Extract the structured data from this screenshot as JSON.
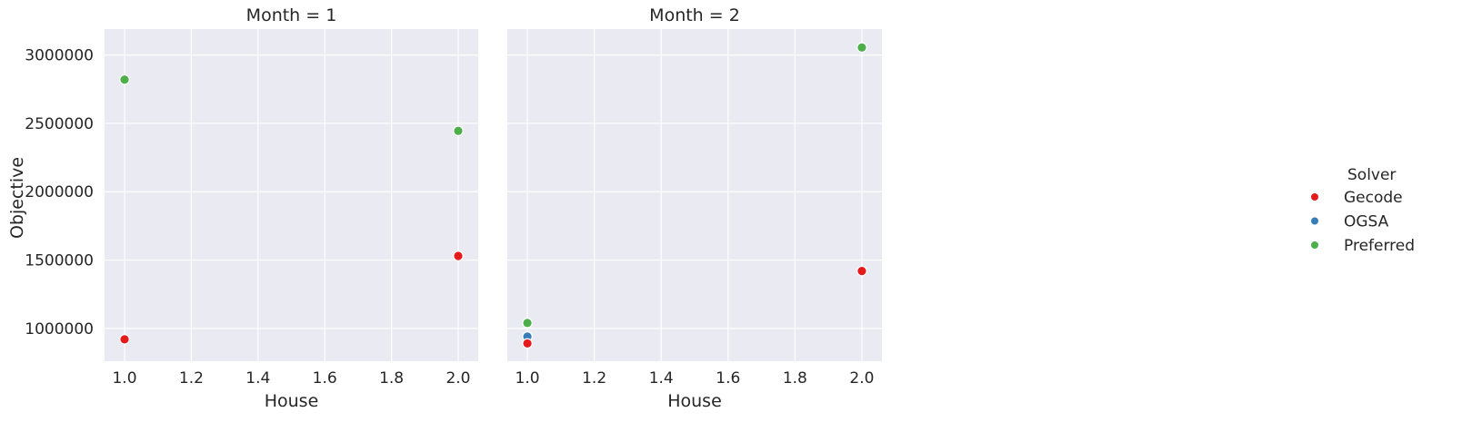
{
  "chart_data": {
    "type": "scatter",
    "xlabel": "House",
    "ylabel": "Objective",
    "xlim": [
      0.94,
      2.06
    ],
    "ylim": [
      760000,
      3190000
    ],
    "xticks": [
      1.0,
      1.2,
      1.4,
      1.6,
      1.8,
      2.0
    ],
    "xtick_labels": [
      "1.0",
      "1.2",
      "1.4",
      "1.6",
      "1.8",
      "2.0"
    ],
    "yticks": [
      1000000,
      1500000,
      2000000,
      2500000,
      3000000
    ],
    "ytick_labels": [
      "1000000",
      "1500000",
      "2000000",
      "2500000",
      "3000000"
    ],
    "grid": true,
    "legend": {
      "title": "Solver",
      "placement": "right",
      "entries": [
        {
          "name": "Gecode",
          "color": "#e41a1c"
        },
        {
          "name": "OGSA",
          "color": "#377eb8"
        },
        {
          "name": "Preferred",
          "color": "#4daf4a"
        }
      ]
    },
    "facets": [
      {
        "title": "Month = 1",
        "series": [
          {
            "name": "Gecode",
            "color": "#e41a1c",
            "points": [
              {
                "x": 1.0,
                "y": 920000
              },
              {
                "x": 2.0,
                "y": 1530000
              }
            ]
          },
          {
            "name": "OGSA",
            "color": "#377eb8",
            "points": []
          },
          {
            "name": "Preferred",
            "color": "#4daf4a",
            "points": [
              {
                "x": 1.0,
                "y": 2820000
              },
              {
                "x": 2.0,
                "y": 2445000
              }
            ]
          }
        ]
      },
      {
        "title": "Month = 2",
        "series": [
          {
            "name": "OGSA",
            "color": "#377eb8",
            "points": [
              {
                "x": 1.0,
                "y": 940000
              }
            ]
          },
          {
            "name": "Gecode",
            "color": "#e41a1c",
            "points": [
              {
                "x": 1.0,
                "y": 890000
              },
              {
                "x": 2.0,
                "y": 1420000
              }
            ]
          },
          {
            "name": "Preferred",
            "color": "#4daf4a",
            "points": [
              {
                "x": 1.0,
                "y": 1040000
              },
              {
                "x": 2.0,
                "y": 3055000
              }
            ]
          }
        ]
      }
    ]
  }
}
